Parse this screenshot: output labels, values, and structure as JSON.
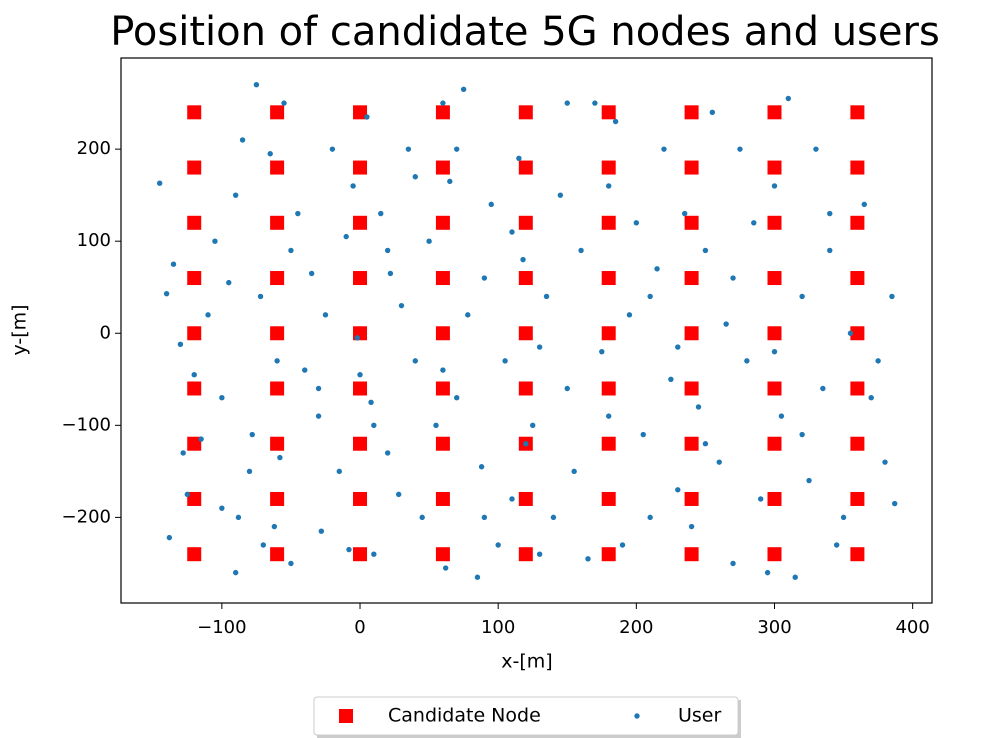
{
  "chart_data": {
    "type": "scatter",
    "title": "Position of candidate 5G nodes and users",
    "xlabel": "x-[m]",
    "ylabel": "y-[m]",
    "xlim": [
      -173,
      414
    ],
    "ylim": [
      -293,
      299
    ],
    "xticks": [
      {
        "value": -100,
        "label": "−100"
      },
      0,
      100,
      200,
      300,
      400
    ],
    "yticks": [
      {
        "value": -200,
        "label": "−200"
      },
      {
        "value": -100,
        "label": "−100"
      },
      0,
      100,
      200
    ],
    "legend": "below",
    "series": [
      {
        "name": "Candidate Node",
        "color": "#ff0000",
        "marker": "square",
        "x": [
          -120,
          -120,
          -120,
          -120,
          -120,
          -120,
          -120,
          -120,
          -120,
          -60,
          -60,
          -60,
          -60,
          -60,
          -60,
          -60,
          -60,
          -60,
          0,
          0,
          0,
          0,
          0,
          0,
          0,
          0,
          0,
          60,
          60,
          60,
          60,
          60,
          60,
          60,
          60,
          60,
          120,
          120,
          120,
          120,
          120,
          120,
          120,
          120,
          120,
          180,
          180,
          180,
          180,
          180,
          180,
          180,
          180,
          180,
          240,
          240,
          240,
          240,
          240,
          240,
          240,
          240,
          240,
          300,
          300,
          300,
          300,
          300,
          300,
          300,
          300,
          300,
          360,
          360,
          360,
          360,
          360,
          360,
          360,
          360,
          360
        ],
        "values": [
          -240,
          -180,
          -120,
          -60,
          0,
          60,
          120,
          180,
          240,
          -240,
          -180,
          -120,
          -60,
          0,
          60,
          120,
          180,
          240,
          -240,
          -180,
          -120,
          -60,
          0,
          60,
          120,
          180,
          240,
          -240,
          -180,
          -120,
          -60,
          0,
          60,
          120,
          180,
          240,
          -240,
          -180,
          -120,
          -60,
          0,
          60,
          120,
          180,
          240,
          -240,
          -180,
          -120,
          -60,
          0,
          60,
          120,
          180,
          240,
          -240,
          -180,
          -120,
          -60,
          0,
          60,
          120,
          180,
          240,
          -240,
          -180,
          -120,
          -60,
          0,
          60,
          120,
          180,
          240,
          -240,
          -180,
          -120,
          -60,
          0,
          60,
          120,
          180,
          240
        ]
      },
      {
        "name": "User",
        "color": "#1f77b4",
        "marker": "circle",
        "x": [
          -145,
          -140,
          -138,
          -135,
          -130,
          -128,
          -125,
          -115,
          -110,
          -105,
          -100,
          -95,
          -90,
          -88,
          -85,
          -80,
          -78,
          -75,
          -72,
          -70,
          -65,
          -62,
          -58,
          -55,
          -50,
          -45,
          -40,
          -35,
          -30,
          -28,
          -25,
          -20,
          -15,
          -10,
          -8,
          -5,
          -2,
          5,
          8,
          10,
          15,
          20,
          22,
          28,
          30,
          35,
          40,
          45,
          50,
          55,
          60,
          62,
          65,
          70,
          75,
          78,
          85,
          88,
          90,
          95,
          100,
          105,
          110,
          115,
          118,
          125,
          130,
          135,
          140,
          145,
          150,
          155,
          160,
          165,
          170,
          175,
          180,
          185,
          190,
          195,
          200,
          205,
          210,
          215,
          220,
          225,
          230,
          235,
          240,
          245,
          250,
          255,
          260,
          265,
          270,
          275,
          280,
          285,
          290,
          295,
          300,
          305,
          310,
          315,
          320,
          325,
          330,
          335,
          340,
          345,
          350,
          355,
          365,
          370,
          375,
          380,
          385,
          387,
          -120,
          -60,
          0,
          60,
          130,
          230,
          300,
          180,
          120,
          20,
          -90,
          340,
          250,
          150,
          90,
          40,
          -30,
          -100,
          210,
          270,
          320,
          110,
          70,
          10,
          -50
        ],
        "values": [
          163,
          43,
          -222,
          75,
          -12,
          -130,
          -175,
          -115,
          20,
          100,
          -70,
          55,
          -260,
          -200,
          210,
          -150,
          -110,
          270,
          40,
          -230,
          195,
          -210,
          -135,
          250,
          -250,
          130,
          -40,
          65,
          -90,
          -215,
          20,
          200,
          -150,
          105,
          -235,
          160,
          -5,
          235,
          -75,
          -240,
          130,
          -130,
          65,
          -175,
          30,
          200,
          -30,
          -200,
          100,
          -100,
          250,
          -255,
          165,
          -70,
          265,
          20,
          -265,
          -145,
          60,
          140,
          -230,
          -30,
          -180,
          190,
          80,
          -100,
          -240,
          40,
          -200,
          150,
          -60,
          -150,
          90,
          -245,
          250,
          -20,
          -90,
          230,
          -230,
          20,
          120,
          -110,
          -200,
          70,
          200,
          -50,
          -170,
          130,
          -210,
          -80,
          90,
          240,
          -140,
          10,
          -250,
          200,
          -30,
          120,
          -180,
          -260,
          160,
          -90,
          255,
          -265,
          40,
          -160,
          200,
          -60,
          130,
          -230,
          -200,
          0,
          140,
          -70,
          -30,
          -140,
          40,
          -185,
          -45,
          -30,
          -45,
          -40,
          -15,
          -15,
          -20,
          160,
          -120,
          90,
          150,
          90,
          -120,
          250,
          -200,
          170,
          -60,
          -190,
          40,
          60,
          -110,
          110,
          200,
          -100,
          90
        ]
      }
    ]
  }
}
